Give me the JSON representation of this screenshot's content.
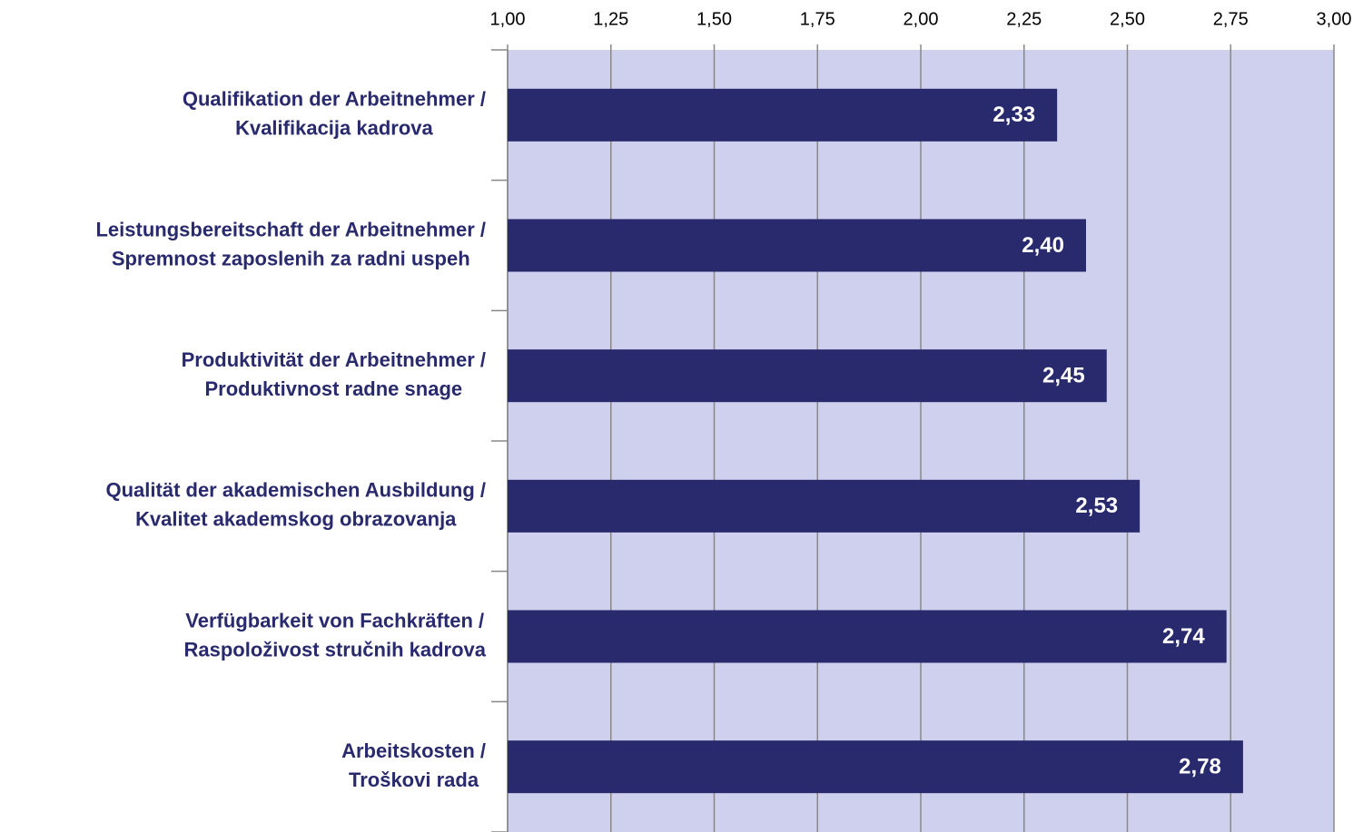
{
  "chart_data": {
    "type": "barh",
    "categories": [
      [
        "Qualifikation der Arbeitnehmer /",
        "Kvalifikacija kadrova"
      ],
      [
        "Leistungsbereitschaft der Arbeitnehmer /",
        "Spremnost zaposlenih za radni uspeh"
      ],
      [
        "Produktivität der Arbeitnehmer /",
        "Produktivnost radne snage"
      ],
      [
        "Qualität der akademischen Ausbildung /",
        "Kvalitet akademskog obrazovanja"
      ],
      [
        "Verfügbarkeit von Fachkräften /",
        "Raspoloživost stručnih kadrova"
      ],
      [
        "Arbeitskosten /",
        "Troškovi rada"
      ]
    ],
    "values": [
      2.33,
      2.4,
      2.45,
      2.53,
      2.74,
      2.78
    ],
    "value_labels": [
      "2,33",
      "2,40",
      "2,45",
      "2,53",
      "2,74",
      "2,78"
    ],
    "color": "#29296e",
    "plot_color": "#cfcfee",
    "xlim": [
      1,
      3
    ],
    "xticks": [
      {
        "value": 1,
        "label": "1,00"
      },
      {
        "value": 1.25,
        "label": "1,25"
      },
      {
        "value": 1.5,
        "label": "1,50"
      },
      {
        "value": 1.75,
        "label": "1,75"
      },
      {
        "value": 2,
        "label": "2,00"
      },
      {
        "value": 2.25,
        "label": "2,25"
      },
      {
        "value": 2.5,
        "label": "2,50"
      },
      {
        "value": 2.75,
        "label": "2,75"
      },
      {
        "value": 3,
        "label": "3,00"
      }
    ],
    "grid": true
  }
}
